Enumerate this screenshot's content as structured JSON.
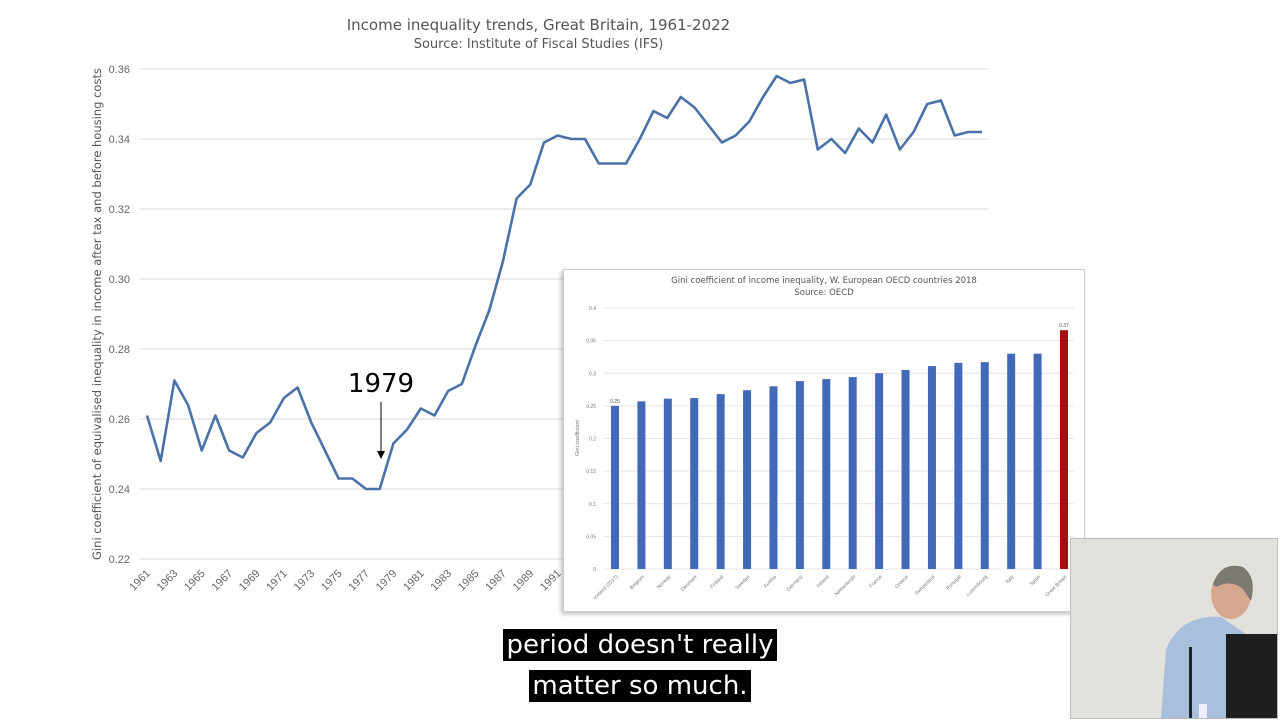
{
  "chart_data": [
    {
      "type": "line",
      "title": "Income inequality trends, Great Britain, 1961-2022",
      "subtitle": "Source: Institute of Fiscal Studies (IFS)",
      "xlabel": "",
      "ylabel": "Gini coefficient of equivalised inequality in income after tax and before housing costs",
      "ylim": [
        0.22,
        0.36
      ],
      "yticks": [
        "0.22",
        "0.24",
        "0.26",
        "0.28",
        "0.30",
        "0.32",
        "0.34",
        "0.36"
      ],
      "xticks": [
        "1961",
        "1963",
        "1965",
        "1967",
        "1969",
        "1971",
        "1973",
        "1975",
        "1977",
        "1979",
        "1981",
        "1983",
        "1985",
        "1987",
        "1989",
        "1991"
      ],
      "grid": true,
      "color": "#4a72a8",
      "annotation": {
        "text": "1979",
        "x": 1979
      },
      "x": [
        1961,
        1962,
        1963,
        1964,
        1965,
        1966,
        1967,
        1968,
        1969,
        1970,
        1971,
        1972,
        1973,
        1974,
        1975,
        1976,
        1977,
        1978,
        1979,
        1980,
        1981,
        1982,
        1983,
        1984,
        1985,
        1986,
        1987,
        1988,
        1989,
        1990,
        1991,
        1992,
        1993,
        1994,
        1995,
        1996,
        1997,
        1998,
        1999,
        2000,
        2001,
        2002,
        2003,
        2004,
        2005,
        2006,
        2007,
        2008,
        2009,
        2010,
        2011,
        2012,
        2013,
        2014,
        2015,
        2016,
        2017,
        2018,
        2019,
        2020,
        2021,
        2022
      ],
      "values": [
        0.261,
        0.248,
        0.271,
        0.264,
        0.251,
        0.261,
        0.251,
        0.249,
        0.256,
        0.259,
        0.266,
        0.269,
        0.259,
        0.251,
        0.243,
        0.243,
        0.24,
        0.24,
        0.253,
        0.257,
        0.263,
        0.261,
        0.268,
        0.27,
        0.281,
        0.291,
        0.305,
        0.323,
        0.327,
        0.339,
        0.341,
        0.34,
        0.34,
        0.333,
        0.333,
        0.333,
        0.34,
        0.348,
        0.346,
        0.352,
        0.349,
        0.344,
        0.339,
        0.341,
        0.345,
        0.352,
        0.358,
        0.356,
        0.357,
        0.337,
        0.34,
        0.336,
        0.343,
        0.339,
        0.347,
        0.337,
        0.342,
        0.35,
        0.351,
        0.341,
        0.342,
        0.342
      ]
    },
    {
      "type": "bar",
      "title": "Gini coefficient of income inequality, W. European OECD countries 2018",
      "subtitle": "Source: OECD",
      "ylabel": "Gini coefficient",
      "ylim": [
        0,
        0.4
      ],
      "yticks": [
        "0",
        "0.05",
        "0.1",
        "0.15",
        "0.2",
        "0.25",
        "0.3",
        "0.35",
        "0.4"
      ],
      "grid": true,
      "categories": [
        "Iceland (2017)",
        "Belgium",
        "Norway",
        "Denmark",
        "Finland",
        "Sweden",
        "Austria",
        "Germany",
        "Ireland",
        "Netherlands",
        "France",
        "Greece",
        "Switzerland",
        "Portugal",
        "Luxembourg",
        "Italy",
        "Spain",
        "Great Britain"
      ],
      "values": [
        0.25,
        0.257,
        0.261,
        0.262,
        0.268,
        0.274,
        0.28,
        0.288,
        0.291,
        0.294,
        0.3,
        0.305,
        0.311,
        0.316,
        0.317,
        0.33,
        0.33,
        0.366
      ],
      "data_labels": {
        "0": "0.25",
        "17": "0.37"
      },
      "colors": {
        "default": "#4169b8",
        "highlight": "#a50f0f"
      }
    }
  ],
  "captions": [
    "period doesn't really",
    "matter so much."
  ]
}
